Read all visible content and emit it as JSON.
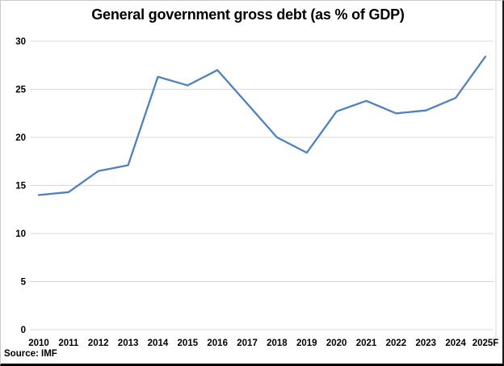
{
  "chart_data": {
    "type": "line",
    "title": "General government gross debt (as % of GDP)",
    "categories": [
      "2010",
      "2011",
      "2012",
      "2013",
      "2014",
      "2015",
      "2016",
      "2017",
      "2018",
      "2019",
      "2020",
      "2021",
      "2022",
      "2023",
      "2024",
      "2025F"
    ],
    "values": [
      14.0,
      14.3,
      16.5,
      17.1,
      26.3,
      25.4,
      27.0,
      23.5,
      20.0,
      18.4,
      22.7,
      23.8,
      22.5,
      22.8,
      24.1,
      28.4
    ],
    "xlabel": "",
    "ylabel": "",
    "ylim": [
      0,
      30
    ],
    "ytick_interval": 5,
    "ytick_labels": [
      "0",
      "5",
      "10",
      "15",
      "20",
      "25",
      "30"
    ],
    "grid": "horizontal",
    "legend": "none",
    "line_color": "#4F81BD",
    "gridline_color": "#D9D9D9",
    "text_color": "#000000"
  },
  "source_note": "Source: IMF"
}
